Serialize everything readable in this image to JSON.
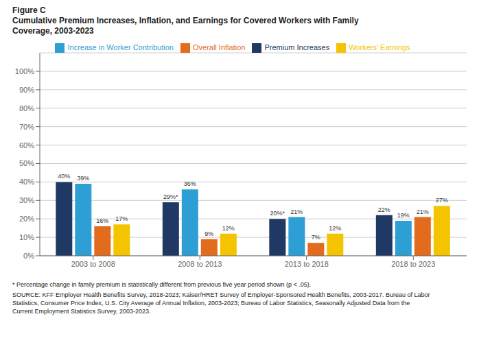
{
  "chart_data": {
    "type": "bar",
    "title": "Figure C",
    "subtitle": "Cumulative Premium Increases, Inflation, and Earnings for Covered Workers with Family\nCoverage, 2003-2023",
    "categories": [
      "2003 to 2008",
      "2008 to 2013",
      "2013 to 2018",
      "2018 to 2023"
    ],
    "series": [
      {
        "name": "Premium Increases",
        "color": "#1f3864",
        "values": [
          40,
          29,
          20,
          22
        ],
        "value_labels": [
          "40%",
          "29%*",
          "20%*",
          "22%"
        ]
      },
      {
        "name": "Increase in Worker Contribution",
        "color": "#2e9fd4",
        "values": [
          39,
          36,
          21,
          19
        ],
        "value_labels": [
          "39%",
          "36%",
          "21%",
          "19%"
        ]
      },
      {
        "name": "Overall Inflation",
        "color": "#e36b1e",
        "values": [
          16,
          9,
          7,
          21
        ],
        "value_labels": [
          "16%",
          "9%",
          "7%",
          "21%"
        ]
      },
      {
        "name": "Workers' Earnings",
        "color": "#f5c400",
        "values": [
          17,
          12,
          12,
          27
        ],
        "value_labels": [
          "17%",
          "12%",
          "12%",
          "27%"
        ]
      }
    ],
    "ylim": [
      0,
      110
    ],
    "yticks": [
      {
        "value": 0,
        "label": "0%"
      },
      {
        "value": 10,
        "label": "10%"
      },
      {
        "value": 20,
        "label": "20%"
      },
      {
        "value": 30,
        "label": "30%"
      },
      {
        "value": 40,
        "label": "40%"
      },
      {
        "value": 50,
        "label": "50%"
      },
      {
        "value": 60,
        "label": "60%"
      },
      {
        "value": 70,
        "label": "70%"
      },
      {
        "value": 80,
        "label": "80%"
      },
      {
        "value": 90,
        "label": "90%"
      },
      {
        "value": 100,
        "label": "100%"
      }
    ],
    "grid": true,
    "legend": "top",
    "data_labels": true,
    "annotations": [
      "* Percentage change in family premium is statistically different from previous five year period shown (p < .05).",
      "SOURCE: KFF Employer Health Benefits Survey, 2018-2023; Kaiser/HRET Survey of Employer-Sponsored Health Benefits, 2003-2017. Bureau of Labor\nStatistics, Consumer Price Index, U.S. City Average of Annual Inflation, 2003-2023; Bureau of Labor Statistics, Seasonally Adjusted Data from the\nCurrent Employment Statistics Survey, 2003-2023."
    ]
  }
}
